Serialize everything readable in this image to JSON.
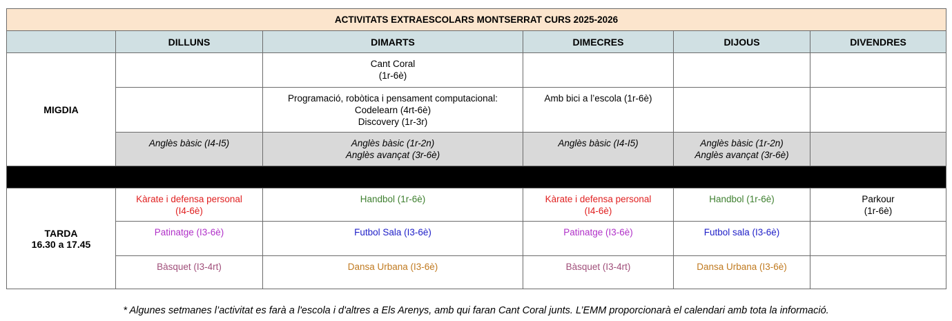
{
  "title": "ACTIVITATS EXTRAESCOLARS MONTSERRAT CURS 2025-2026",
  "days": [
    "DILLUNS",
    "DIMARTS",
    "DIMECRES",
    "DIJOUS",
    "DIVENDRES"
  ],
  "migdia": {
    "label": "MIGDIA",
    "row1": {
      "dimarts": [
        "Cant Coral",
        "(1r-6è)"
      ]
    },
    "row2": {
      "dimarts": [
        "Programació, robòtica i pensament computacional:",
        "Codelearn (4rt-6è)",
        "Discovery (1r-3r)"
      ],
      "dimecres": [
        "Amb bici a l’escola (1r-6è)"
      ]
    },
    "row3": {
      "dilluns": [
        "Anglès bàsic (I4-I5)"
      ],
      "dimarts": [
        "Anglès bàsic (1r-2n)",
        "Anglès avançat (3r-6è)"
      ],
      "dimecres": [
        "Anglès bàsic (I4-I5)"
      ],
      "dijous": [
        "Anglès bàsic (1r-2n)",
        "Anglès avançat (3r-6è)"
      ]
    }
  },
  "tarda": {
    "label": [
      "TARDA",
      "16.30 a 17.45"
    ],
    "row1": {
      "dilluns": [
        "Kàrate i defensa personal",
        "(I4-6è)"
      ],
      "dimarts": [
        "Handbol (1r-6è)"
      ],
      "dimecres": [
        "Kàrate i defensa personal",
        "(I4-6è)"
      ],
      "dijous": [
        "Handbol (1r-6è)"
      ],
      "divendres": [
        "Parkour",
        "(1r-6è)"
      ]
    },
    "row2": {
      "dilluns": [
        "Patinatge (I3-6è)"
      ],
      "dimarts": [
        "Futbol Sala (I3-6è)"
      ],
      "dimecres": [
        "Patinatge (I3-6è)"
      ],
      "dijous": [
        "Futbol sala (I3-6è)"
      ]
    },
    "row3": {
      "dilluns": [
        "Bàsquet (I3-4rt)"
      ],
      "dimarts": [
        "Dansa Urbana (I3-6è)"
      ],
      "dimecres": [
        "Bàsquet (I3-4rt)"
      ],
      "dijous": [
        "Dansa Urbana (I3-6è)"
      ]
    }
  },
  "colors": {
    "title_bg": "#fce5cd",
    "header_bg": "#d0e0e3",
    "grey_row_bg": "#d9d9d9",
    "separator": "#000000",
    "karate": "#e02020",
    "handbol": "#3f8030",
    "patinatge": "#b030c8",
    "futbol": "#2020c8",
    "basquet": "#a04f7a",
    "dansa": "#c07a20"
  },
  "footnote": "* Algunes setmanes l’activitat es farà a l'escola i d'altres a Els Arenys, amb qui faran Cant Coral junts. L’EMM proporcionarà el calendari amb tota la informació."
}
